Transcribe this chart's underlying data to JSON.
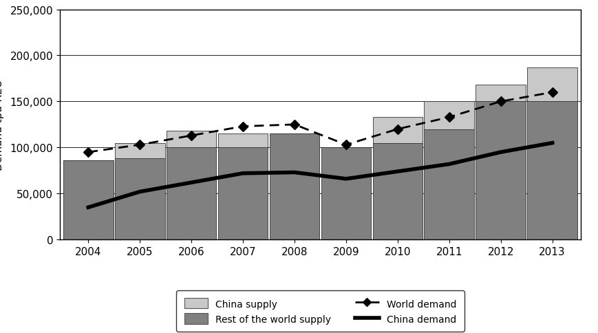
{
  "years": [
    2004,
    2005,
    2006,
    2007,
    2008,
    2009,
    2010,
    2011,
    2012,
    2013
  ],
  "rest_of_world_supply": [
    86000,
    88000,
    100000,
    100000,
    115000,
    100000,
    105000,
    120000,
    150000,
    150000
  ],
  "china_supply": [
    0,
    17000,
    18000,
    15000,
    0,
    0,
    28000,
    30000,
    18000,
    37000
  ],
  "world_demand": [
    95000,
    103000,
    113000,
    123000,
    125000,
    103000,
    120000,
    133000,
    150000,
    160000
  ],
  "china_demand": [
    35000,
    52000,
    62000,
    72000,
    73000,
    66000,
    74000,
    82000,
    95000,
    105000
  ],
  "ylim": [
    0,
    250000
  ],
  "yticks": [
    0,
    50000,
    100000,
    150000,
    200000,
    250000
  ],
  "china_supply_color": "#c8c8c8",
  "rest_world_supply_color": "#808080",
  "background_color": "#ffffff",
  "legend_china_supply": "China supply",
  "legend_rest_world": "Rest of the world supply",
  "legend_world_demand": "World demand",
  "legend_china_demand": "China demand"
}
